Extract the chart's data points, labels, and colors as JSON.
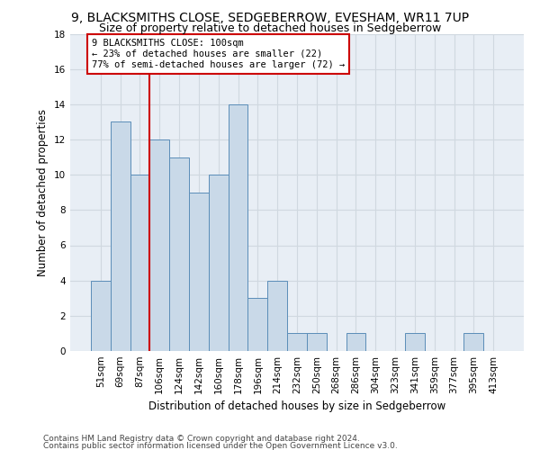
{
  "title": "9, BLACKSMITHS CLOSE, SEDGEBERROW, EVESHAM, WR11 7UP",
  "subtitle": "Size of property relative to detached houses in Sedgeberrow",
  "xlabel": "Distribution of detached houses by size in Sedgeberrow",
  "ylabel": "Number of detached properties",
  "bin_labels": [
    "51sqm",
    "69sqm",
    "87sqm",
    "106sqm",
    "124sqm",
    "142sqm",
    "160sqm",
    "178sqm",
    "196sqm",
    "214sqm",
    "232sqm",
    "250sqm",
    "268sqm",
    "286sqm",
    "304sqm",
    "323sqm",
    "341sqm",
    "359sqm",
    "377sqm",
    "395sqm",
    "413sqm"
  ],
  "bar_heights": [
    4,
    13,
    10,
    12,
    11,
    9,
    10,
    14,
    3,
    4,
    1,
    1,
    0,
    1,
    0,
    0,
    1,
    0,
    0,
    1,
    0
  ],
  "bar_color": "#c9d9e8",
  "bar_edge_color": "#5b8db8",
  "property_line_color": "#cc0000",
  "annotation_line1": "9 BLACKSMITHS CLOSE: 100sqm",
  "annotation_line2": "← 23% of detached houses are smaller (22)",
  "annotation_line3": "77% of semi-detached houses are larger (72) →",
  "annotation_box_color": "#cc0000",
  "ylim": [
    0,
    18
  ],
  "yticks": [
    0,
    2,
    4,
    6,
    8,
    10,
    12,
    14,
    16,
    18
  ],
  "footer_line1": "Contains HM Land Registry data © Crown copyright and database right 2024.",
  "footer_line2": "Contains public sector information licensed under the Open Government Licence v3.0.",
  "background_color": "#e8eef5",
  "plot_bg_color": "#ffffff",
  "grid_color": "#d0d8e0",
  "title_fontsize": 10,
  "subtitle_fontsize": 9,
  "axis_label_fontsize": 8.5,
  "tick_fontsize": 7.5,
  "footer_fontsize": 6.5
}
